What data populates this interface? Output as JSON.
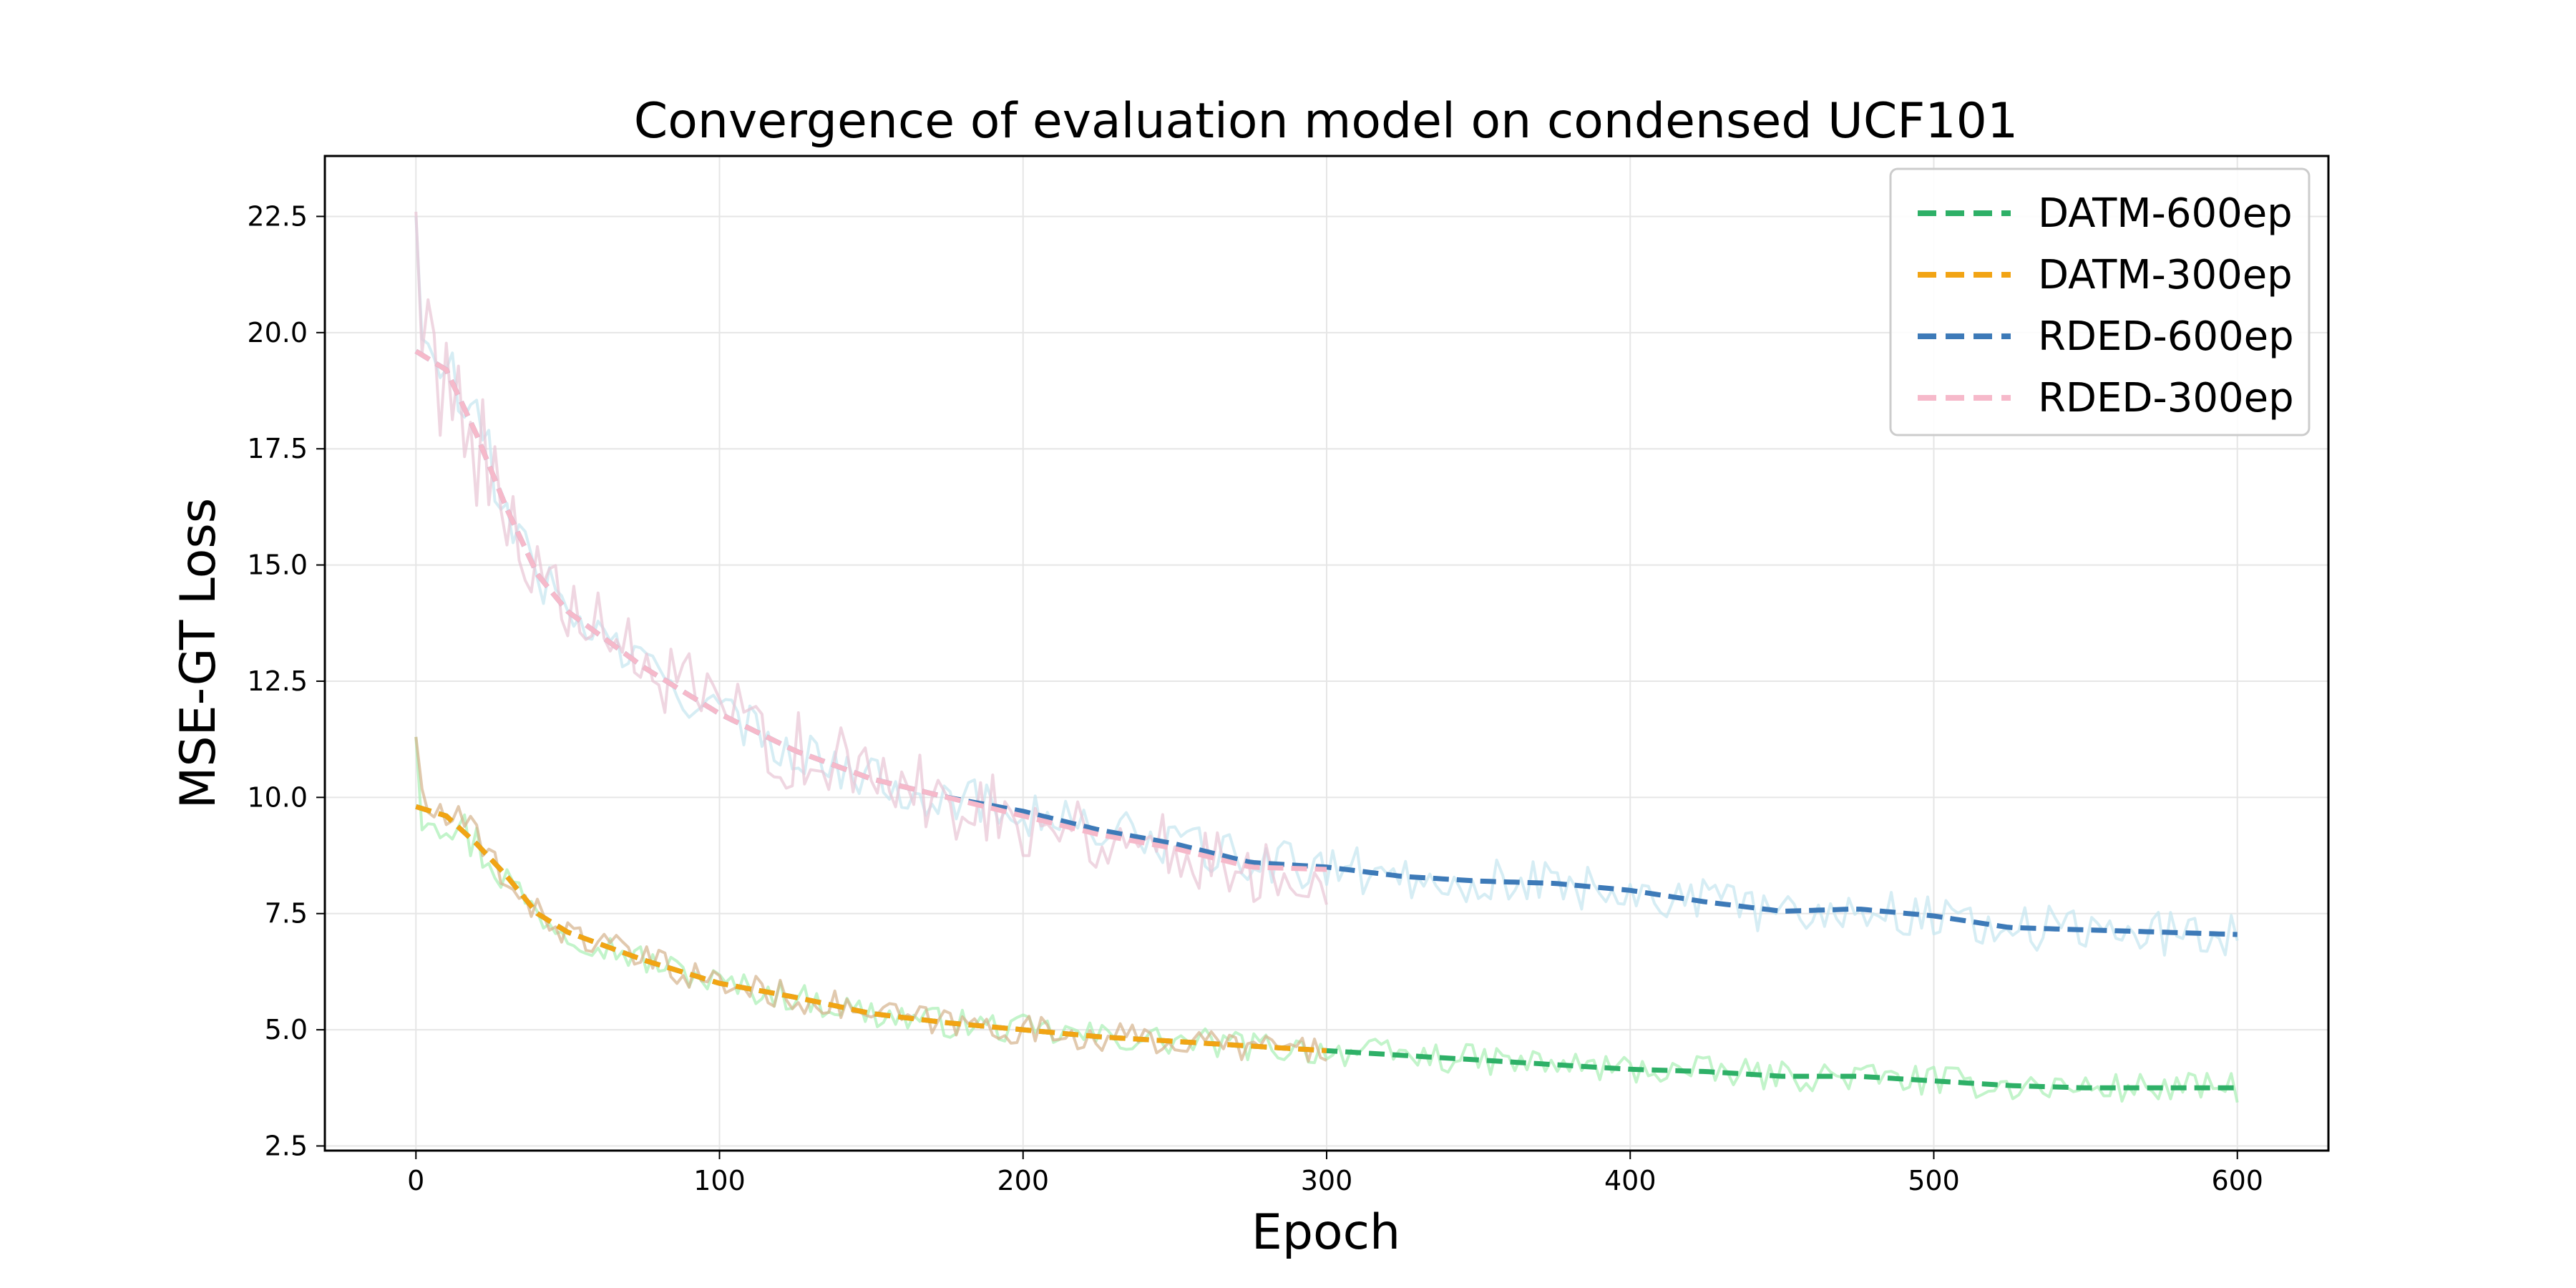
{
  "chart_data": {
    "type": "line",
    "title": "Convergence of evaluation model on condensed UCF101",
    "xlabel": "Epoch",
    "ylabel": "MSE-GT Loss",
    "xlim": [
      -30,
      630
    ],
    "ylim": [
      2.4,
      23.8
    ],
    "xticks": [
      0,
      100,
      200,
      300,
      400,
      500,
      600
    ],
    "xtick_labels": [
      "0",
      "100",
      "200",
      "300",
      "400",
      "500",
      "600"
    ],
    "yticks": [
      2.5,
      5.0,
      7.5,
      10.0,
      12.5,
      15.0,
      17.5,
      20.0,
      22.5
    ],
    "ytick_labels": [
      "2.5",
      "5.0",
      "7.5",
      "10.0",
      "12.5",
      "15.0",
      "17.5",
      "20.0",
      "22.5"
    ],
    "grid": true,
    "legend_position": "top-right",
    "series": [
      {
        "name": "DATM-600ep",
        "color": "#2eb067",
        "raw_color": "#a8efb4",
        "x_end": 600,
        "smooth_x": [
          0,
          10,
          20,
          30,
          40,
          50,
          75,
          100,
          125,
          150,
          175,
          200,
          225,
          250,
          275,
          300,
          325,
          350,
          375,
          400,
          425,
          450,
          475,
          500,
          525,
          550,
          575,
          600
        ],
        "smooth_y": [
          9.8,
          9.6,
          9.0,
          8.3,
          7.5,
          7.1,
          6.5,
          6.0,
          5.7,
          5.35,
          5.15,
          5.0,
          4.85,
          4.75,
          4.65,
          4.55,
          4.45,
          4.35,
          4.25,
          4.15,
          4.1,
          4.0,
          4.0,
          3.9,
          3.8,
          3.75,
          3.75,
          3.75
        ],
        "noise": 0.32,
        "raw_start": 11.3
      },
      {
        "name": "DATM-300ep",
        "color": "#f2a414",
        "raw_color": "#d4b28c",
        "x_end": 300,
        "smooth_x": [
          0,
          10,
          20,
          30,
          40,
          50,
          75,
          100,
          125,
          150,
          175,
          200,
          225,
          250,
          275,
          300
        ],
        "smooth_y": [
          9.8,
          9.6,
          9.0,
          8.3,
          7.5,
          7.1,
          6.5,
          6.0,
          5.7,
          5.35,
          5.15,
          5.0,
          4.85,
          4.75,
          4.65,
          4.55
        ],
        "noise": 0.32,
        "raw_start": 11.3
      },
      {
        "name": "RDED-600ep",
        "color": "#3d7ab8",
        "raw_color": "#c5e5f0",
        "x_end": 600,
        "smooth_x": [
          0,
          10,
          20,
          30,
          40,
          50,
          75,
          100,
          125,
          150,
          175,
          200,
          225,
          250,
          275,
          300,
          325,
          350,
          375,
          400,
          425,
          450,
          475,
          500,
          525,
          550,
          575,
          600
        ],
        "smooth_y": [
          19.6,
          19.2,
          17.8,
          16.2,
          14.8,
          14.0,
          12.8,
          11.8,
          11.0,
          10.4,
          10.0,
          9.7,
          9.3,
          9.0,
          8.6,
          8.5,
          8.3,
          8.2,
          8.15,
          8.0,
          7.75,
          7.55,
          7.6,
          7.45,
          7.2,
          7.15,
          7.1,
          7.05
        ],
        "noise": 0.5,
        "raw_start": 22.5
      },
      {
        "name": "RDED-300ep",
        "color": "#f6b9ca",
        "raw_color": "#e8c4d4",
        "x_end": 300,
        "smooth_x": [
          0,
          10,
          20,
          30,
          40,
          50,
          75,
          100,
          125,
          150,
          175,
          200,
          225,
          250,
          275,
          300
        ],
        "smooth_y": [
          19.6,
          19.2,
          17.8,
          16.2,
          14.8,
          14.0,
          12.8,
          11.8,
          11.0,
          10.4,
          10.0,
          9.6,
          9.2,
          8.9,
          8.5,
          8.45
        ],
        "noise": 0.9,
        "raw_start": 22.6
      }
    ]
  }
}
